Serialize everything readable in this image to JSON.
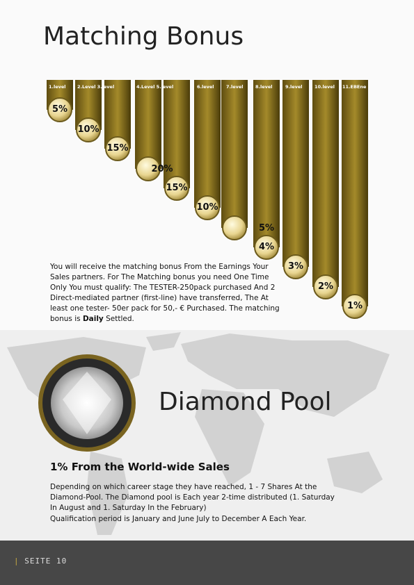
{
  "matching": {
    "title": "Matching Bonus",
    "level_labels": [
      "1.level",
      "2.Level 3.level",
      "4.Level 5.level",
      "6.level",
      "7.level",
      "8.level",
      "9.level",
      "10.level",
      "11.EBEne"
    ],
    "percentages": [
      "5%",
      "10%",
      "15%",
      "20%",
      "15%",
      "10%",
      "5%",
      "4%",
      "3%",
      "2%",
      "1%"
    ],
    "text_before": "You will receive the matching bonus From the Earnings Your  Sales partners. For The Matching bonus you need One Time Only You must qualify: The TESTER-250pack purchased And 2 Direct-mediated partner (first-line) have transferred, The At least one tester- 50er pack for 50,- € Purchased. The matching bonus is ",
    "text_bold": "Daily",
    "text_after": " Settled."
  },
  "diamond": {
    "title": "Diamond Pool",
    "subtitle": "1% From the World-wide Sales",
    "paragraph1": "Depending on which career stage they have reached, 1 - 7 Shares At the Diamond-Pool. The Diamond pool is Each year 2-time distributed (1. Saturday In August and 1. Saturday In the February)",
    "paragraph2": "Qualification period is January and June July to December A Each Year."
  },
  "footer": {
    "page": "SEITE 10"
  }
}
